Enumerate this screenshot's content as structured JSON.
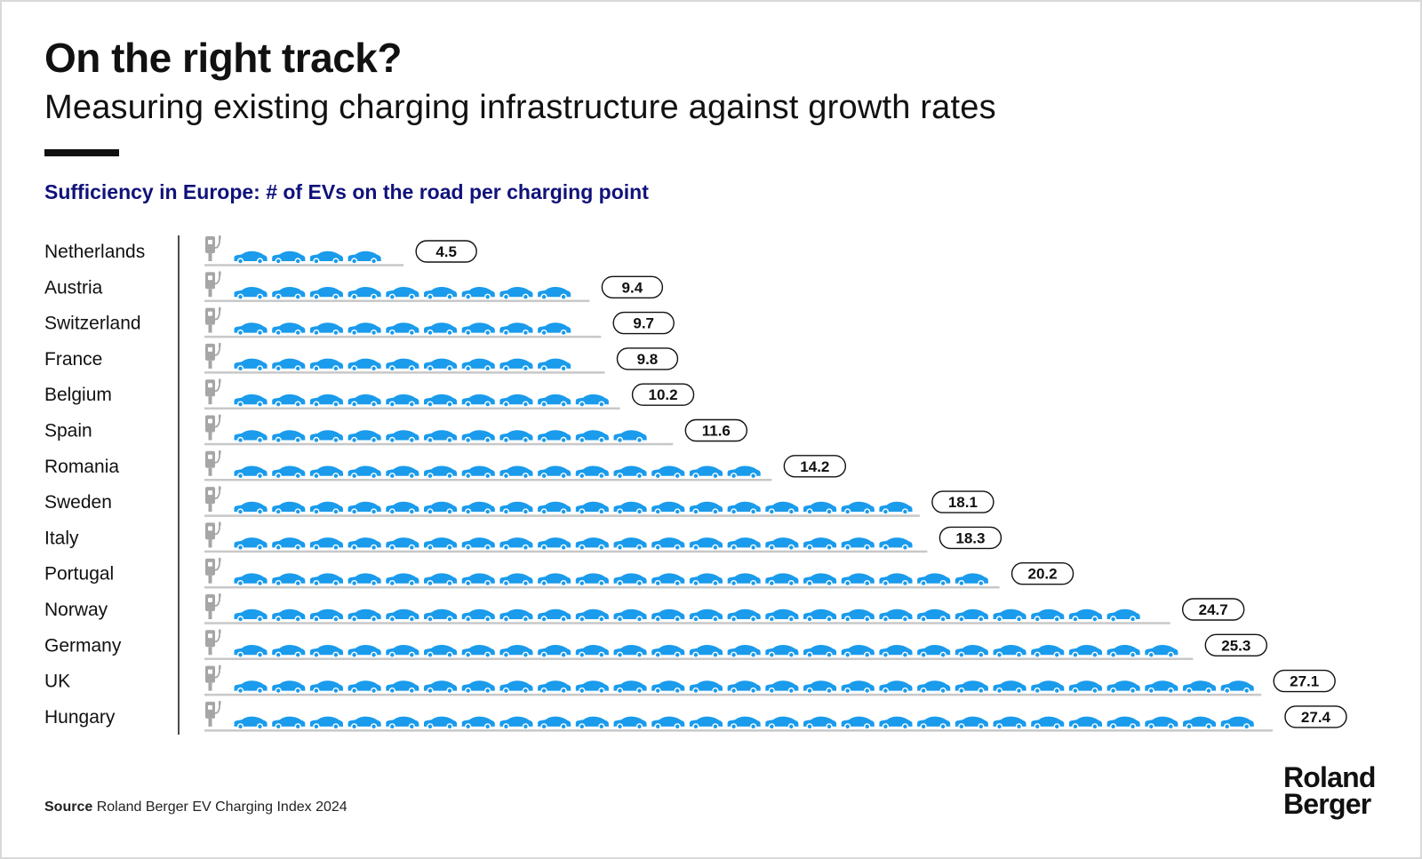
{
  "header": {
    "title": "On the right track?",
    "subtitle": "Measuring existing charging infrastructure against growth rates"
  },
  "chart_heading": "Sufficiency in Europe: # of EVs on the road per charging point",
  "footer": {
    "source_label": "Source",
    "source_text": "Roland Berger EV Charging Index 2024"
  },
  "logo": {
    "line1": "Roland",
    "line2": "Berger"
  },
  "icons": {
    "row_start": "charging-station-icon",
    "unit": "electric-car-icon"
  },
  "colors": {
    "car": "#1a9bec",
    "charger": "#a6a6a6",
    "heading": "#10127a"
  },
  "chart_data": {
    "type": "bar",
    "title": "Sufficiency in Europe: # of EVs on the road per charging point",
    "unit_per_icon": 1,
    "categories": [
      "Netherlands",
      "Austria",
      "Switzerland",
      "France",
      "Belgium",
      "Spain",
      "Romania",
      "Sweden",
      "Italy",
      "Portugal",
      "Norway",
      "Germany",
      "UK",
      "Hungary"
    ],
    "values": [
      4.5,
      9.4,
      9.7,
      9.8,
      10.2,
      11.6,
      14.2,
      18.1,
      18.3,
      20.2,
      24.7,
      25.3,
      27.1,
      27.4
    ],
    "value_labels": [
      "4.5",
      "9.4",
      "9.7",
      "9.8",
      "10.2",
      "11.6",
      "14.2",
      "18.1",
      "18.3",
      "20.2",
      "24.7",
      "25.3",
      "27.1",
      "27.4"
    ]
  }
}
